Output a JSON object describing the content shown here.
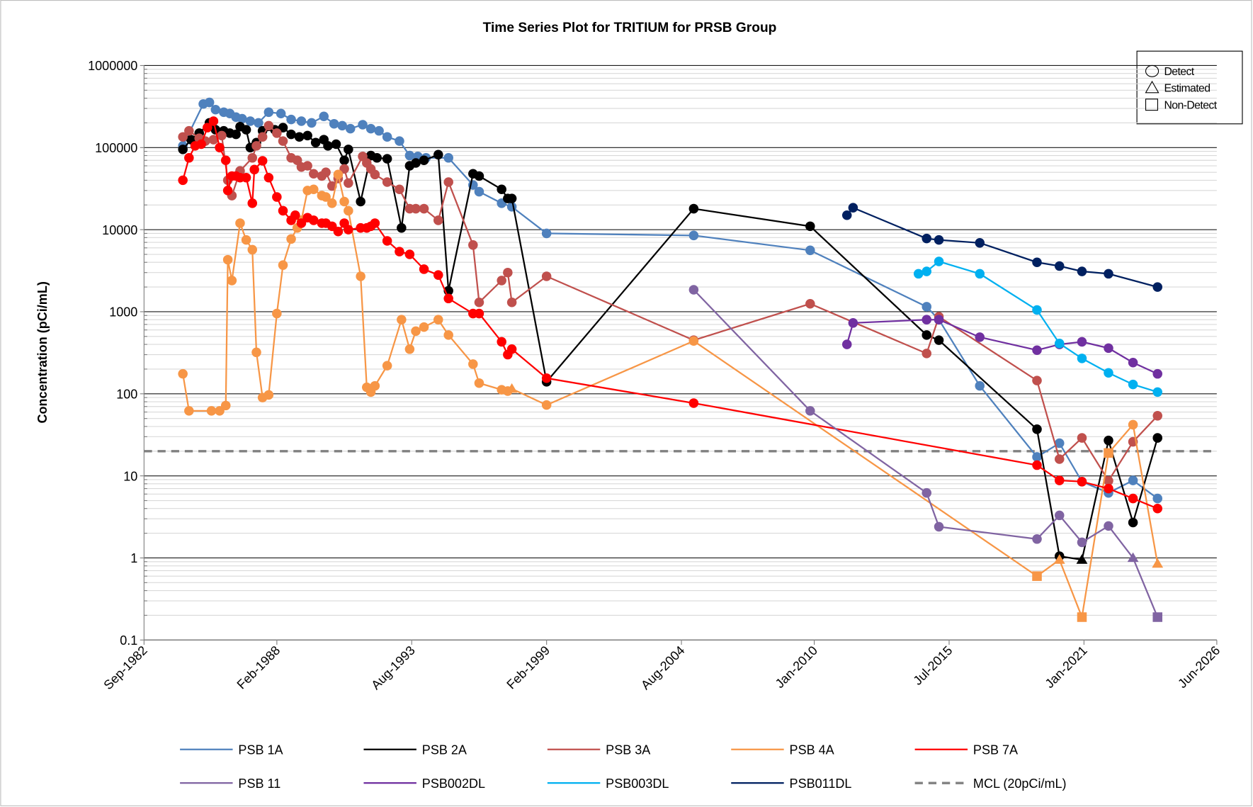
{
  "chart_data": {
    "type": "line",
    "title": "Time Series Plot for TRITIUM for PRSB Group",
    "y_label": "Concentration (pCi/mL)",
    "y_scale": "log",
    "grid": true,
    "minor_grid": true,
    "xlim": [
      "1982-09",
      "2026-06"
    ],
    "xticks": [
      {
        "value": "1982-09",
        "label": "Sep-1982"
      },
      {
        "value": "1988-02",
        "label": "Feb-1988"
      },
      {
        "value": "1993-08",
        "label": "Aug-1993"
      },
      {
        "value": "1999-02",
        "label": "Feb-1999"
      },
      {
        "value": "2004-08",
        "label": "Aug-2004"
      },
      {
        "value": "2010-01",
        "label": "Jan-2010"
      },
      {
        "value": "2015-07",
        "label": "Jul-2015"
      },
      {
        "value": "2021-01",
        "label": "Jan-2021"
      },
      {
        "value": "2026-06",
        "label": "Jun-2026"
      }
    ],
    "ylim": [
      0.1,
      1000000
    ],
    "yticks": [
      0.1,
      1,
      10,
      100,
      1000,
      10000,
      100000,
      1000000
    ],
    "marker_legend": [
      {
        "label": "Detect",
        "code": "D"
      },
      {
        "label": "Estimated",
        "code": "E"
      },
      {
        "label": "Non-Detect",
        "code": "N"
      }
    ],
    "series": [
      {
        "name": "PSB  1A",
        "color": "#4f81bd",
        "x": [
          "1984-04",
          "1985-02",
          "1985-05",
          "1985-08",
          "1985-12",
          "1986-03",
          "1986-06",
          "1986-09",
          "1987-01",
          "1987-05",
          "1987-10",
          "1988-04",
          "1988-09",
          "1989-02",
          "1989-07",
          "1990-01",
          "1990-06",
          "1990-10",
          "1991-02",
          "1991-08",
          "1991-12",
          "1992-04",
          "1992-08",
          "1993-02",
          "1993-07",
          "1993-11",
          "1994-03",
          "1995-02",
          "1996-02",
          "1996-05",
          "1997-04",
          "1997-09",
          "1999-02",
          "2005-02",
          "2009-11",
          "2014-08",
          "2015-02",
          "2016-10",
          "2019-02",
          "2020-01",
          "2020-12",
          "2022-01",
          "2023-01",
          "2024-01"
        ],
        "values": [
          105000,
          340000,
          355000,
          290000,
          270000,
          260000,
          235000,
          225000,
          210000,
          200000,
          270000,
          260000,
          220000,
          210000,
          200000,
          240000,
          195000,
          185000,
          170000,
          190000,
          170000,
          160000,
          135000,
          120000,
          80000,
          78000,
          75000,
          75000,
          35000,
          29000,
          21000,
          19000,
          9000,
          8500,
          5600,
          1150,
          800,
          125,
          17,
          25,
          8.5,
          6.2,
          8.8,
          5.3
        ]
      },
      {
        "name": "PSB  2A",
        "color": "#000000",
        "x": [
          "1984-04",
          "1984-08",
          "1984-12",
          "1985-05",
          "1985-08",
          "1985-12",
          "1986-03",
          "1986-06",
          "1986-08",
          "1986-11",
          "1987-01",
          "1987-04",
          "1987-07",
          "1988-01",
          "1988-05",
          "1988-09",
          "1989-01",
          "1989-05",
          "1989-09",
          "1990-01",
          "1990-03",
          "1990-07",
          "1990-11",
          "1991-01",
          "1991-07",
          "1991-12",
          "1992-03",
          "1992-08",
          "1993-03",
          "1993-07",
          "1993-10",
          "1994-02",
          "1994-09",
          "1995-02",
          "1996-02",
          "1996-05",
          "1997-04",
          "1997-07",
          "1997-09",
          "1999-02",
          "2005-02",
          "2009-11",
          "2014-08",
          "2015-02",
          "2019-02",
          "2020-01",
          "2020-12",
          "2022-01",
          "2023-01",
          "2024-01"
        ],
        "values": [
          95000,
          125000,
          150000,
          200000,
          165000,
          160000,
          150000,
          145000,
          180000,
          165000,
          100000,
          115000,
          160000,
          165000,
          175000,
          145000,
          135000,
          140000,
          115000,
          125000,
          105000,
          110000,
          70000,
          95000,
          22000,
          80000,
          75000,
          73000,
          10500,
          60000,
          65000,
          70000,
          82000,
          1800,
          48000,
          45000,
          31000,
          24000,
          24000,
          140,
          18000,
          11000,
          520,
          450,
          37,
          1.05,
          0.95,
          27,
          2.7,
          29
        ],
        "qualifiers": [
          "D",
          "D",
          "D",
          "D",
          "D",
          "D",
          "D",
          "D",
          "D",
          "D",
          "D",
          "D",
          "D",
          "D",
          "D",
          "D",
          "D",
          "D",
          "D",
          "D",
          "D",
          "D",
          "D",
          "D",
          "D",
          "D",
          "D",
          "D",
          "D",
          "D",
          "D",
          "D",
          "D",
          "D",
          "D",
          "D",
          "D",
          "D",
          "D",
          "D",
          "D",
          "D",
          "D",
          "D",
          "D",
          "D",
          "E",
          "D",
          "D",
          "D"
        ]
      },
      {
        "name": "PSB  3A",
        "color": "#c0504d",
        "x": [
          "1984-04",
          "1984-07",
          "1984-12",
          "1985-03",
          "1985-07",
          "1985-11",
          "1986-02",
          "1986-04",
          "1986-08",
          "1987-02",
          "1987-04",
          "1987-07",
          "1987-10",
          "1988-02",
          "1988-05",
          "1988-09",
          "1988-12",
          "1989-02",
          "1989-05",
          "1989-08",
          "1989-12",
          "1990-02",
          "1990-05",
          "1990-08",
          "1990-11",
          "1991-01",
          "1991-08",
          "1991-10",
          "1991-12",
          "1992-02",
          "1992-08",
          "1993-02",
          "1993-07",
          "1993-10",
          "1994-02",
          "1994-09",
          "1995-02",
          "1996-02",
          "1996-05",
          "1997-04",
          "1997-07",
          "1997-09",
          "1999-02",
          "2005-02",
          "2009-11",
          "2014-08",
          "2015-02",
          "2019-02",
          "2020-01",
          "2020-12",
          "2022-01",
          "2023-01",
          "2024-01"
        ],
        "values": [
          135000,
          160000,
          130000,
          120000,
          125000,
          140000,
          40000,
          26000,
          52000,
          75000,
          105000,
          135000,
          185000,
          150000,
          120000,
          75000,
          70000,
          58000,
          60000,
          48000,
          45000,
          50000,
          34000,
          42000,
          55000,
          37000,
          78000,
          65000,
          55000,
          47000,
          38000,
          31000,
          18000,
          18000,
          18000,
          13000,
          38000,
          6500,
          1300,
          2400,
          3000,
          1300,
          2700,
          450,
          1250,
          310,
          870,
          145,
          16,
          29,
          8.7,
          26,
          54
        ]
      },
      {
        "name": "PSB  4A",
        "color": "#f79646",
        "x": [
          "1984-04",
          "1984-07",
          "1985-06",
          "1985-10",
          "1986-01",
          "1986-02",
          "1986-04",
          "1986-08",
          "1986-11",
          "1987-02",
          "1987-04",
          "1987-07",
          "1987-10",
          "1988-02",
          "1988-05",
          "1988-09",
          "1988-12",
          "1989-02",
          "1989-05",
          "1989-08",
          "1989-12",
          "1990-02",
          "1990-05",
          "1990-08",
          "1990-11",
          "1991-01",
          "1991-07",
          "1991-10",
          "1991-12",
          "1992-02",
          "1992-08",
          "1993-03",
          "1993-07",
          "1993-10",
          "1994-02",
          "1994-09",
          "1995-02",
          "1996-02",
          "1996-05",
          "1997-04",
          "1997-07",
          "1997-09",
          "1999-02",
          "2005-02",
          "2019-02",
          "2020-01",
          "2020-12",
          "2022-01",
          "2023-01",
          "2024-01"
        ],
        "values": [
          175,
          62,
          62,
          62,
          72,
          4300,
          2400,
          12000,
          7500,
          5700,
          320,
          90,
          97,
          950,
          3700,
          7700,
          10500,
          13000,
          30000,
          31000,
          26000,
          25000,
          21000,
          47000,
          22000,
          17000,
          2700,
          120,
          105,
          125,
          220,
          800,
          350,
          580,
          650,
          800,
          520,
          230,
          135,
          112,
          108,
          115,
          73,
          440,
          0.6,
          0.95,
          0.19,
          19,
          42,
          0.85
        ],
        "qualifiers": [
          "D",
          "D",
          "D",
          "D",
          "D",
          "D",
          "D",
          "D",
          "D",
          "D",
          "D",
          "D",
          "D",
          "D",
          "D",
          "D",
          "D",
          "D",
          "D",
          "D",
          "D",
          "D",
          "D",
          "D",
          "D",
          "D",
          "D",
          "D",
          "D",
          "D",
          "D",
          "D",
          "D",
          "D",
          "D",
          "D",
          "D",
          "D",
          "D",
          "D",
          "D",
          "E",
          "D",
          "D",
          "N",
          "E",
          "N",
          "N",
          "D",
          "E"
        ]
      },
      {
        "name": "PSB  7A",
        "color": "#ff0000",
        "x": [
          "1984-04",
          "1984-07",
          "1984-10",
          "1985-01",
          "1985-04",
          "1985-07",
          "1985-10",
          "1986-01",
          "1986-02",
          "1986-04",
          "1986-06",
          "1986-08",
          "1986-11",
          "1987-02",
          "1987-03",
          "1987-07",
          "1987-10",
          "1988-02",
          "1988-05",
          "1988-09",
          "1988-11",
          "1989-02",
          "1989-05",
          "1989-08",
          "1989-12",
          "1990-02",
          "1990-05",
          "1990-08",
          "1990-11",
          "1991-01",
          "1991-07",
          "1991-10",
          "1991-12",
          "1992-02",
          "1992-08",
          "1993-02",
          "1993-07",
          "1994-02",
          "1994-09",
          "1995-02",
          "1996-02",
          "1996-05",
          "1997-04",
          "1997-07",
          "1997-09",
          "1999-02",
          "2005-02",
          "2019-02",
          "2020-01",
          "2020-12",
          "2022-01",
          "2023-01",
          "2024-01"
        ],
        "values": [
          40000,
          75000,
          105000,
          110000,
          175000,
          210000,
          100000,
          70000,
          30000,
          45000,
          45000,
          43000,
          43000,
          21000,
          54000,
          69000,
          43000,
          25000,
          17000,
          13000,
          15000,
          12000,
          14000,
          13000,
          12000,
          12000,
          11000,
          9500,
          12000,
          10000,
          10500,
          10500,
          11000,
          12000,
          7300,
          5400,
          5000,
          3300,
          2800,
          1450,
          950,
          950,
          430,
          300,
          350,
          155,
          77,
          13.5,
          8.8,
          8.5,
          7,
          5.3,
          4
        ]
      },
      {
        "name": "PSB 11",
        "color": "#8064a2",
        "x": [
          "2005-02",
          "2009-11",
          "2014-08",
          "2015-02",
          "2019-02",
          "2020-01",
          "2020-12",
          "2022-01",
          "2023-01",
          "2024-01"
        ],
        "values": [
          1850,
          62,
          6.2,
          2.4,
          1.7,
          3.3,
          1.55,
          2.45,
          1.0,
          0.19
        ],
        "qualifiers": [
          "D",
          "D",
          "D",
          "D",
          "D",
          "D",
          "D",
          "D",
          "E",
          "N"
        ]
      },
      {
        "name": "PSB002DL",
        "color": "#7030a0",
        "x": [
          "2011-05",
          "2011-08",
          "2014-08",
          "2015-02",
          "2016-10",
          "2019-02",
          "2020-01",
          "2020-12",
          "2022-01",
          "2023-01",
          "2024-01"
        ],
        "values": [
          400,
          730,
          800,
          800,
          490,
          340,
          400,
          430,
          360,
          240,
          175
        ]
      },
      {
        "name": "PSB003DL",
        "color": "#00b0f0",
        "x": [
          "2014-04",
          "2014-08",
          "2015-02",
          "2016-10",
          "2019-02",
          "2020-01",
          "2020-12",
          "2022-01",
          "2023-01",
          "2024-01"
        ],
        "values": [
          2900,
          3100,
          4100,
          2900,
          1050,
          410,
          270,
          180,
          130,
          105
        ]
      },
      {
        "name": "PSB011DL",
        "color": "#002060",
        "x": [
          "2011-05",
          "2011-08",
          "2014-08",
          "2015-02",
          "2016-10",
          "2019-02",
          "2020-01",
          "2020-12",
          "2022-01",
          "2024-01"
        ],
        "values": [
          15000,
          18500,
          7800,
          7500,
          6900,
          4000,
          3600,
          3100,
          2900,
          2000
        ]
      }
    ],
    "reference_lines": [
      {
        "name": "MCL (20pCi/mL)",
        "value": 20,
        "color": "#808080"
      }
    ]
  }
}
